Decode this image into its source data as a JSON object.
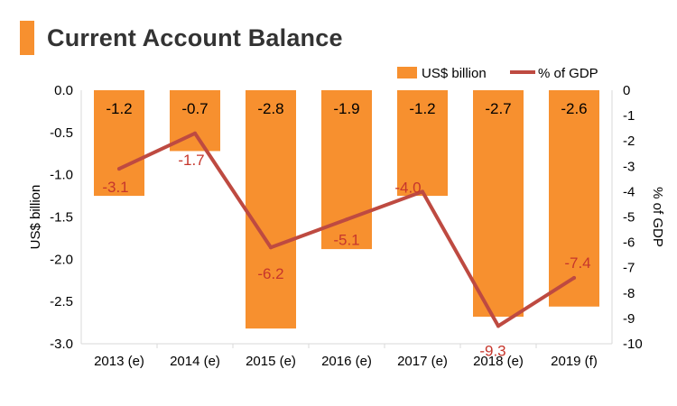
{
  "title": "Current Account Balance",
  "colors": {
    "bar": "#F7902F",
    "line": "#BE4A41",
    "line_label": "#C6362C",
    "title_accent": "#F7902F",
    "text": "#000000"
  },
  "chart_data": {
    "type": "bar",
    "categories": [
      "2013 (e)",
      "2014 (e)",
      "2015 (e)",
      "2016 (e)",
      "2017 (e)",
      "2018 (e)",
      "2019 (f)"
    ],
    "series": [
      {
        "name": "US$ billion",
        "type": "bar",
        "axis": "left",
        "values": [
          -1.25,
          -0.72,
          -2.82,
          -1.88,
          -1.25,
          -2.68,
          -2.56
        ],
        "labels": [
          "-1.2",
          "-0.7",
          "-2.8",
          "-1.9",
          "-1.2",
          "-2.7",
          "-2.6"
        ]
      },
      {
        "name": "% of GDP",
        "type": "line",
        "axis": "right",
        "values": [
          -3.1,
          -1.7,
          -6.2,
          -5.1,
          -4.0,
          -9.3,
          -7.4
        ],
        "labels": [
          "-3.1",
          "-1.7",
          "-6.2",
          "-5.1",
          "-4.0",
          "-9.3",
          "-7.4"
        ]
      }
    ],
    "ylabel": "US$  billion",
    "ylabel_right": "% of GDP",
    "ylim": [
      -3.0,
      0.0
    ],
    "ylim_right": [
      -10,
      0
    ],
    "yticks": [
      "0.0",
      "-0.5",
      "-1.0",
      "-1.5",
      "-2.0",
      "-2.5",
      "-3.0"
    ],
    "yticks_right": [
      "0",
      "-1",
      "-2",
      "-3",
      "-4",
      "-5",
      "-6",
      "-7",
      "-8",
      "-9",
      "-10"
    ],
    "grid": false,
    "legend": "top-right"
  }
}
